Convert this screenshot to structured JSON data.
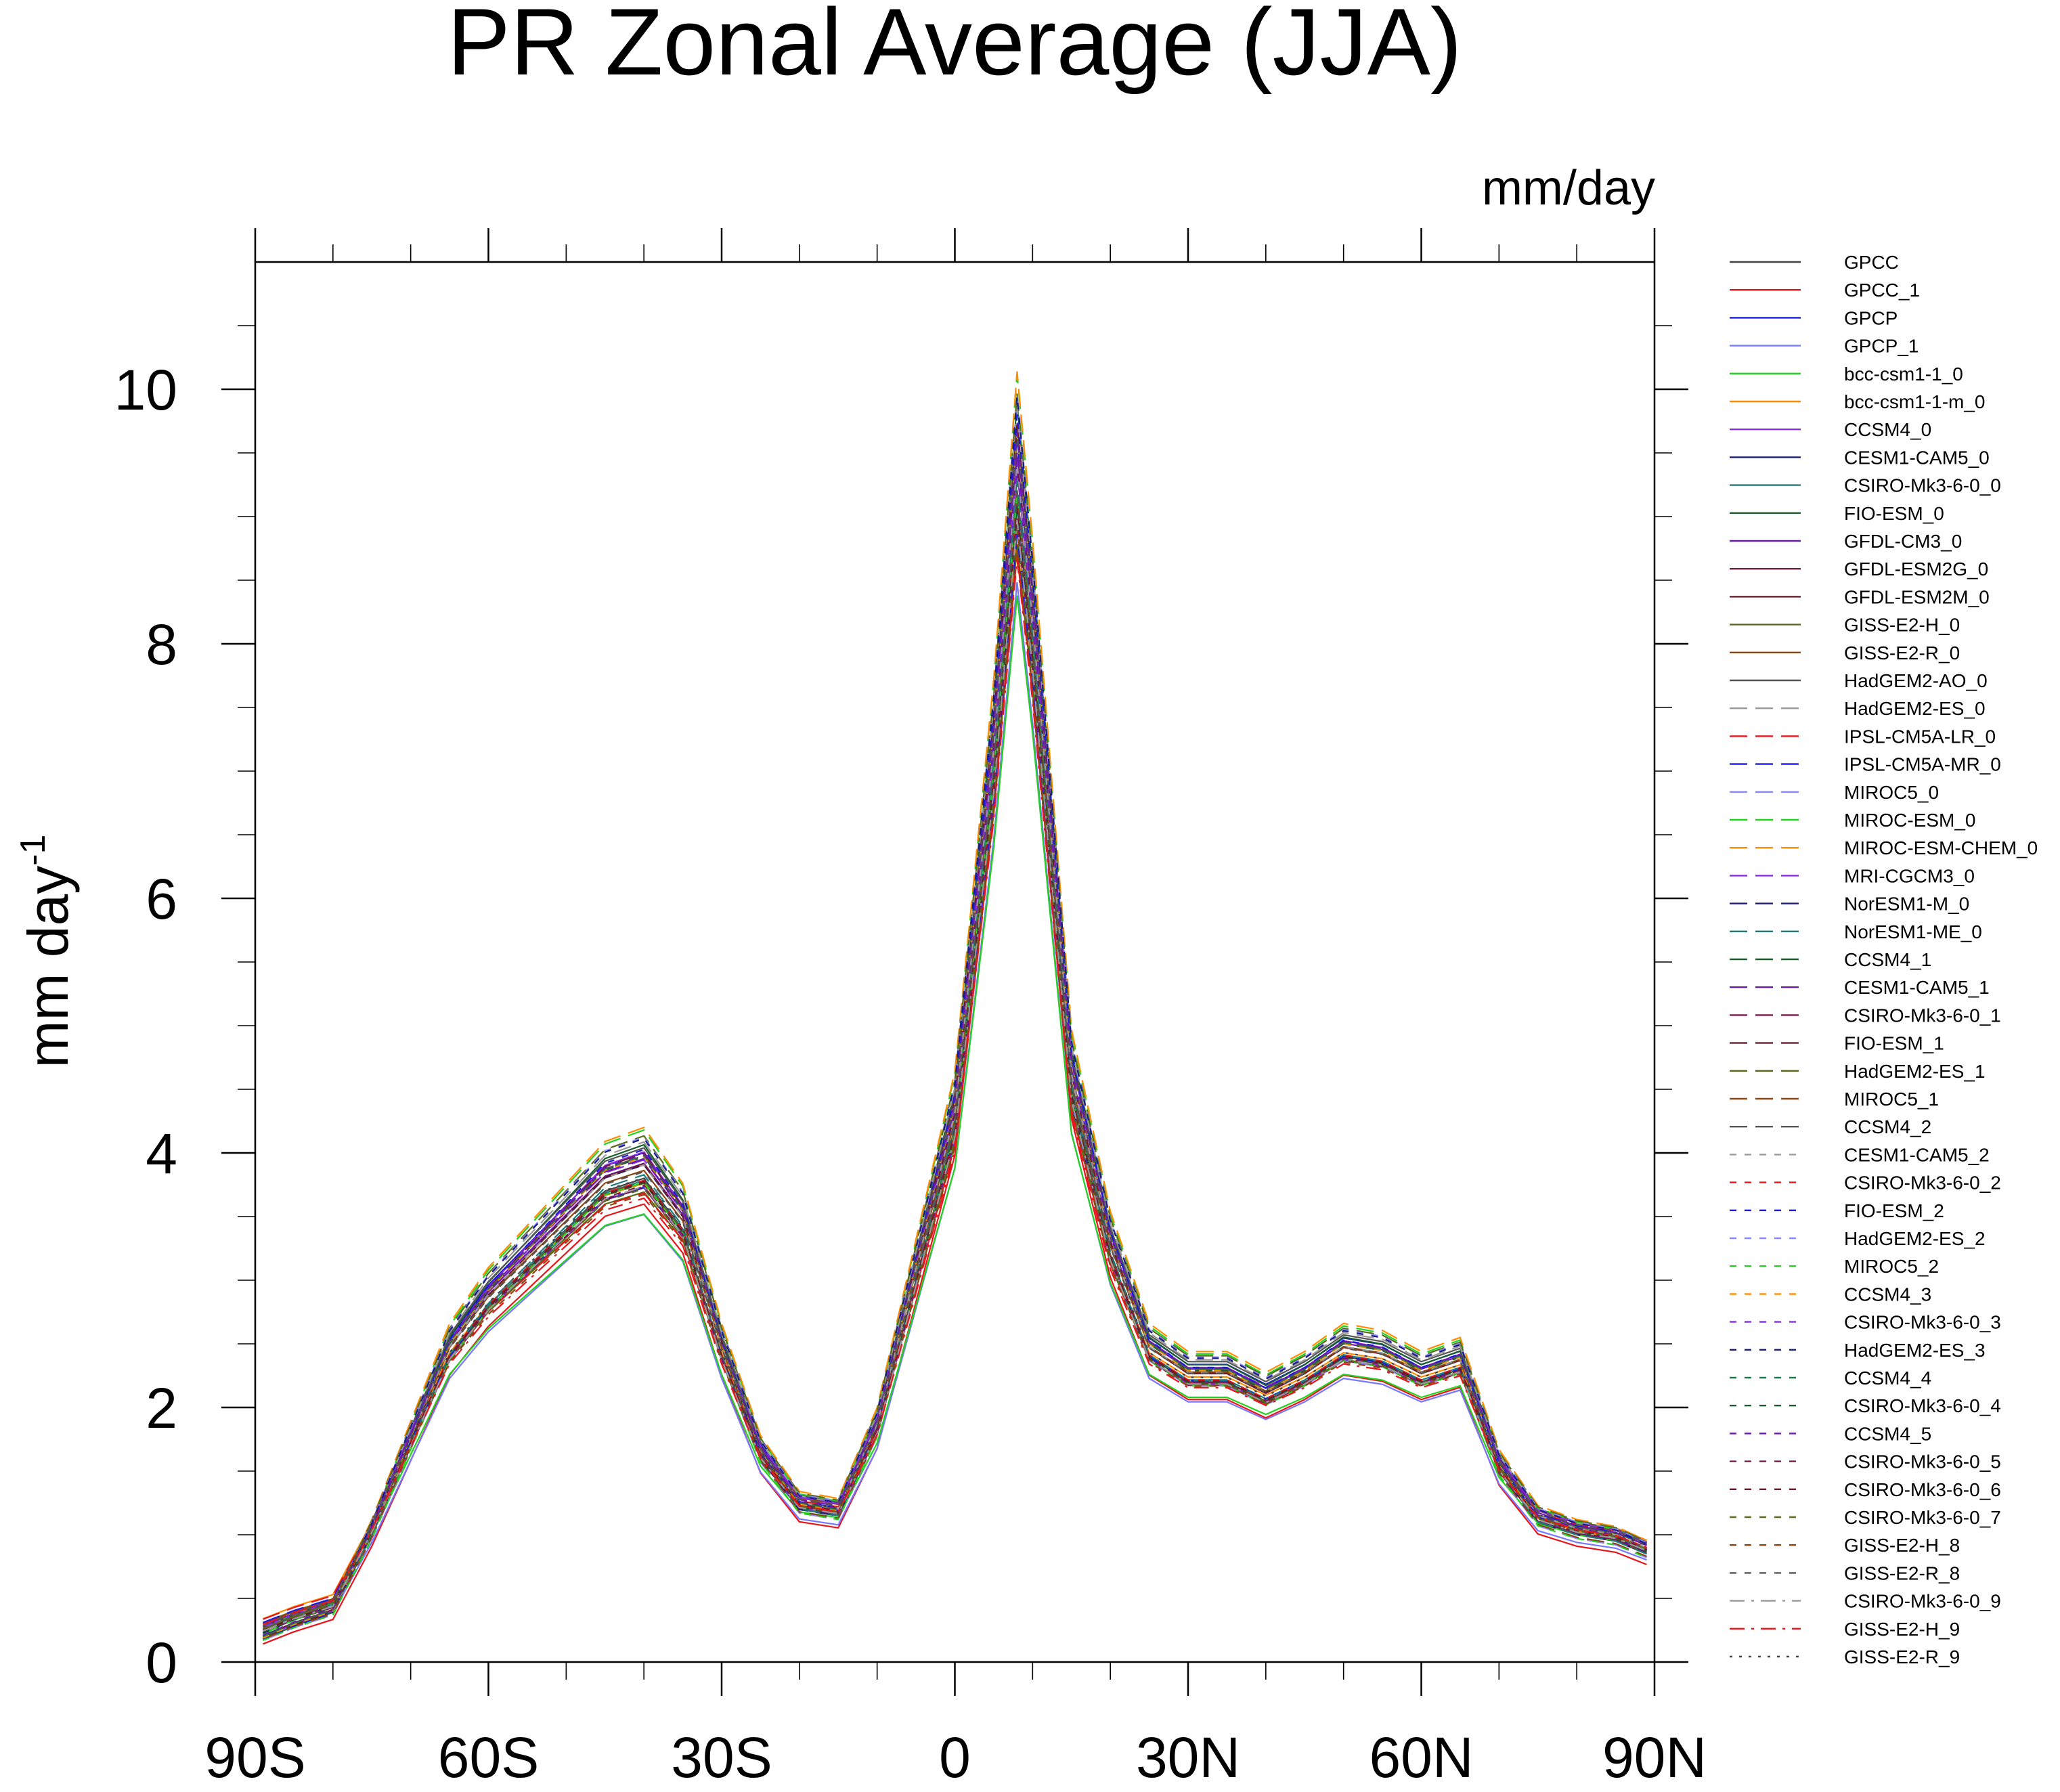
{
  "chart_data": {
    "type": "line",
    "title": "PR Zonal Average (JJA)",
    "units_label": "mm/day",
    "ylabel": "mm day",
    "ylabel_superscript": "-1",
    "xlabel": "",
    "xlim": [
      -90,
      90
    ],
    "ylim": [
      0,
      11
    ],
    "grid": false,
    "legend_position": "right",
    "x_ticks": [
      {
        "value": -90,
        "label": "90S"
      },
      {
        "value": -60,
        "label": "60S"
      },
      {
        "value": -30,
        "label": "30S"
      },
      {
        "value": 0,
        "label": "0"
      },
      {
        "value": 30,
        "label": "30N"
      },
      {
        "value": 60,
        "label": "60N"
      },
      {
        "value": 90,
        "label": "90N"
      }
    ],
    "y_ticks": [
      {
        "value": 0,
        "label": "0"
      },
      {
        "value": 2,
        "label": "2"
      },
      {
        "value": 4,
        "label": "4"
      },
      {
        "value": 6,
        "label": "6"
      },
      {
        "value": 8,
        "label": "8"
      },
      {
        "value": 10,
        "label": "10"
      }
    ],
    "x": [
      -89,
      -85,
      -80,
      -75,
      -70,
      -65,
      -60,
      -55,
      -50,
      -45,
      -40,
      -35,
      -30,
      -25,
      -20,
      -15,
      -10,
      -5,
      0,
      5,
      8,
      10,
      15,
      20,
      25,
      30,
      35,
      40,
      45,
      50,
      55,
      60,
      65,
      70,
      75,
      80,
      85,
      89
    ],
    "base_profile": [
      0.2,
      0.3,
      0.4,
      1.0,
      1.7,
      2.4,
      2.8,
      3.1,
      3.4,
      3.7,
      3.8,
      3.4,
      2.4,
      1.6,
      1.2,
      1.15,
      1.8,
      3.0,
      4.2,
      7.0,
      9.2,
      8.0,
      4.5,
      3.2,
      2.4,
      2.2,
      2.2,
      2.05,
      2.2,
      2.4,
      2.35,
      2.2,
      2.3,
      1.5,
      1.1,
      1.0,
      0.95,
      0.85
    ],
    "series": [
      {
        "name": "GPCC",
        "color": "#444444",
        "dash": "solid",
        "scale": 1.0,
        "offset": 0.0
      },
      {
        "name": "GPCC_1",
        "color": "#e8151b",
        "dash": "solid",
        "scale": 0.96,
        "offset": -0.05
      },
      {
        "name": "GPCP",
        "color": "#1a1adc",
        "dash": "solid",
        "scale": 1.04,
        "offset": 0.05
      },
      {
        "name": "GPCP_1",
        "color": "#7777ff",
        "dash": "solid",
        "scale": 0.92,
        "offset": 0.02
      },
      {
        "name": "bcc-csm1-1_0",
        "color": "#22d21f",
        "dash": "solid",
        "scale": 0.9,
        "offset": 0.1
      },
      {
        "name": "bcc-csm1-1-m_0",
        "color": "#ff8c00",
        "dash": "solid",
        "scale": 0.95,
        "offset": 0.15
      },
      {
        "name": "CCSM4_0",
        "color": "#8a2be2",
        "dash": "solid",
        "scale": 1.06,
        "offset": -0.02
      },
      {
        "name": "CESM1-CAM5_0",
        "color": "#1c1c7a",
        "dash": "solid",
        "scale": 1.02,
        "offset": 0.03
      },
      {
        "name": "CSIRO-Mk3-6-0_0",
        "color": "#1f7a7a",
        "dash": "solid",
        "scale": 0.98,
        "offset": 0.06
      },
      {
        "name": "FIO-ESM_0",
        "color": "#1a5e2a",
        "dash": "solid",
        "scale": 1.08,
        "offset": -0.04
      },
      {
        "name": "GFDL-CM3_0",
        "color": "#6a1aa8",
        "dash": "solid",
        "scale": 1.01,
        "offset": 0.08
      },
      {
        "name": "GFDL-ESM2G_0",
        "color": "#7a1a4a",
        "dash": "solid",
        "scale": 0.97,
        "offset": 0.04
      },
      {
        "name": "GFDL-ESM2M_0",
        "color": "#6a1a2a",
        "dash": "solid",
        "scale": 1.03,
        "offset": 0.0
      },
      {
        "name": "GISS-E2-H_0",
        "color": "#5a6a1a",
        "dash": "solid",
        "scale": 0.94,
        "offset": 0.12
      },
      {
        "name": "GISS-E2-R_0",
        "color": "#8b4513",
        "dash": "solid",
        "scale": 0.99,
        "offset": 0.1
      },
      {
        "name": "HadGEM2-AO_0",
        "color": "#555555",
        "dash": "solid",
        "scale": 1.05,
        "offset": 0.05
      },
      {
        "name": "HadGEM2-ES_0",
        "color": "#999999",
        "dash": "longdash",
        "scale": 1.07,
        "offset": 0.02
      },
      {
        "name": "IPSL-CM5A-LR_0",
        "color": "#e8151b",
        "dash": "longdash",
        "scale": 0.93,
        "offset": 0.15
      },
      {
        "name": "IPSL-CM5A-MR_0",
        "color": "#1a1adc",
        "dash": "longdash",
        "scale": 0.95,
        "offset": 0.12
      },
      {
        "name": "MIROC5_0",
        "color": "#8888ff",
        "dash": "longdash",
        "scale": 1.0,
        "offset": -0.03
      },
      {
        "name": "MIROC-ESM_0",
        "color": "#22d21f",
        "dash": "longdash",
        "scale": 1.1,
        "offset": 0.0
      },
      {
        "name": "MIROC-ESM-CHEM_0",
        "color": "#ff8c00",
        "dash": "longdash",
        "scale": 1.1,
        "offset": 0.02
      },
      {
        "name": "MRI-CGCM3_0",
        "color": "#8a2be2",
        "dash": "longdash",
        "scale": 1.02,
        "offset": 0.07
      },
      {
        "name": "NorESM1-M_0",
        "color": "#1c1c7a",
        "dash": "longdash",
        "scale": 0.99,
        "offset": 0.01
      },
      {
        "name": "NorESM1-ME_0",
        "color": "#1f7a7a",
        "dash": "longdash",
        "scale": 1.01,
        "offset": -0.01
      },
      {
        "name": "CCSM4_1",
        "color": "#1a5e2a",
        "dash": "longdash",
        "scale": 1.05,
        "offset": -0.02
      },
      {
        "name": "CESM1-CAM5_1",
        "color": "#6a1aa8",
        "dash": "longdash",
        "scale": 1.03,
        "offset": 0.04
      },
      {
        "name": "CSIRO-Mk3-6-0_1",
        "color": "#7a1a4a",
        "dash": "longdash",
        "scale": 0.97,
        "offset": 0.05
      },
      {
        "name": "FIO-ESM_1",
        "color": "#6a1a2a",
        "dash": "longdash",
        "scale": 1.06,
        "offset": -0.03
      },
      {
        "name": "HadGEM2-ES_1",
        "color": "#5a6a1a",
        "dash": "longdash",
        "scale": 1.08,
        "offset": 0.03
      },
      {
        "name": "MIROC5_1",
        "color": "#8b4513",
        "dash": "longdash",
        "scale": 1.0,
        "offset": -0.02
      },
      {
        "name": "CCSM4_2",
        "color": "#555555",
        "dash": "longdash",
        "scale": 1.05,
        "offset": -0.01
      },
      {
        "name": "CESM1-CAM5_2",
        "color": "#999999",
        "dash": "shortdash",
        "scale": 1.02,
        "offset": 0.03
      },
      {
        "name": "CSIRO-Mk3-6-0_2",
        "color": "#e8151b",
        "dash": "shortdash",
        "scale": 0.98,
        "offset": 0.06
      },
      {
        "name": "FIO-ESM_2",
        "color": "#1a1adc",
        "dash": "shortdash",
        "scale": 1.07,
        "offset": -0.04
      },
      {
        "name": "HadGEM2-ES_2",
        "color": "#8888ff",
        "dash": "shortdash",
        "scale": 1.08,
        "offset": 0.02
      },
      {
        "name": "MIROC5_2",
        "color": "#22d21f",
        "dash": "shortdash",
        "scale": 1.0,
        "offset": -0.03
      },
      {
        "name": "CCSM4_3",
        "color": "#ff8c00",
        "dash": "shortdash",
        "scale": 1.05,
        "offset": -0.02
      },
      {
        "name": "CSIRO-Mk3-6-0_3",
        "color": "#8a2be2",
        "dash": "shortdash",
        "scale": 0.97,
        "offset": 0.05
      },
      {
        "name": "HadGEM2-ES_3",
        "color": "#1c1c7a",
        "dash": "shortdash",
        "scale": 1.08,
        "offset": 0.01
      },
      {
        "name": "CCSM4_4",
        "color": "#1f7a4a",
        "dash": "shortdash",
        "scale": 1.05,
        "offset": -0.01
      },
      {
        "name": "CSIRO-Mk3-6-0_4",
        "color": "#1a5e2a",
        "dash": "shortdash",
        "scale": 0.98,
        "offset": 0.04
      },
      {
        "name": "CCSM4_5",
        "color": "#6a1aa8",
        "dash": "shortdash",
        "scale": 1.05,
        "offset": 0.0
      },
      {
        "name": "CSIRO-Mk3-6-0_5",
        "color": "#7a1a4a",
        "dash": "shortdash",
        "scale": 0.97,
        "offset": 0.06
      },
      {
        "name": "CSIRO-Mk3-6-0_6",
        "color": "#6a1a2a",
        "dash": "shortdash",
        "scale": 0.98,
        "offset": 0.05
      },
      {
        "name": "CSIRO-Mk3-6-0_7",
        "color": "#5a6a1a",
        "dash": "shortdash",
        "scale": 0.96,
        "offset": 0.07
      },
      {
        "name": "GISS-E2-H_8",
        "color": "#8b4513",
        "dash": "shortdash",
        "scale": 0.94,
        "offset": 0.1
      },
      {
        "name": "GISS-E2-R_8",
        "color": "#555555",
        "dash": "shortdash",
        "scale": 0.99,
        "offset": 0.09
      },
      {
        "name": "CSIRO-Mk3-6-0_9",
        "color": "#999999",
        "dash": "dashdot",
        "scale": 0.97,
        "offset": 0.05
      },
      {
        "name": "GISS-E2-H_9",
        "color": "#e8151b",
        "dash": "dashdot",
        "scale": 0.93,
        "offset": 0.11
      },
      {
        "name": "GISS-E2-R_9",
        "color": "#444444",
        "dash": "dotdot",
        "scale": 0.98,
        "offset": 0.08
      }
    ]
  }
}
